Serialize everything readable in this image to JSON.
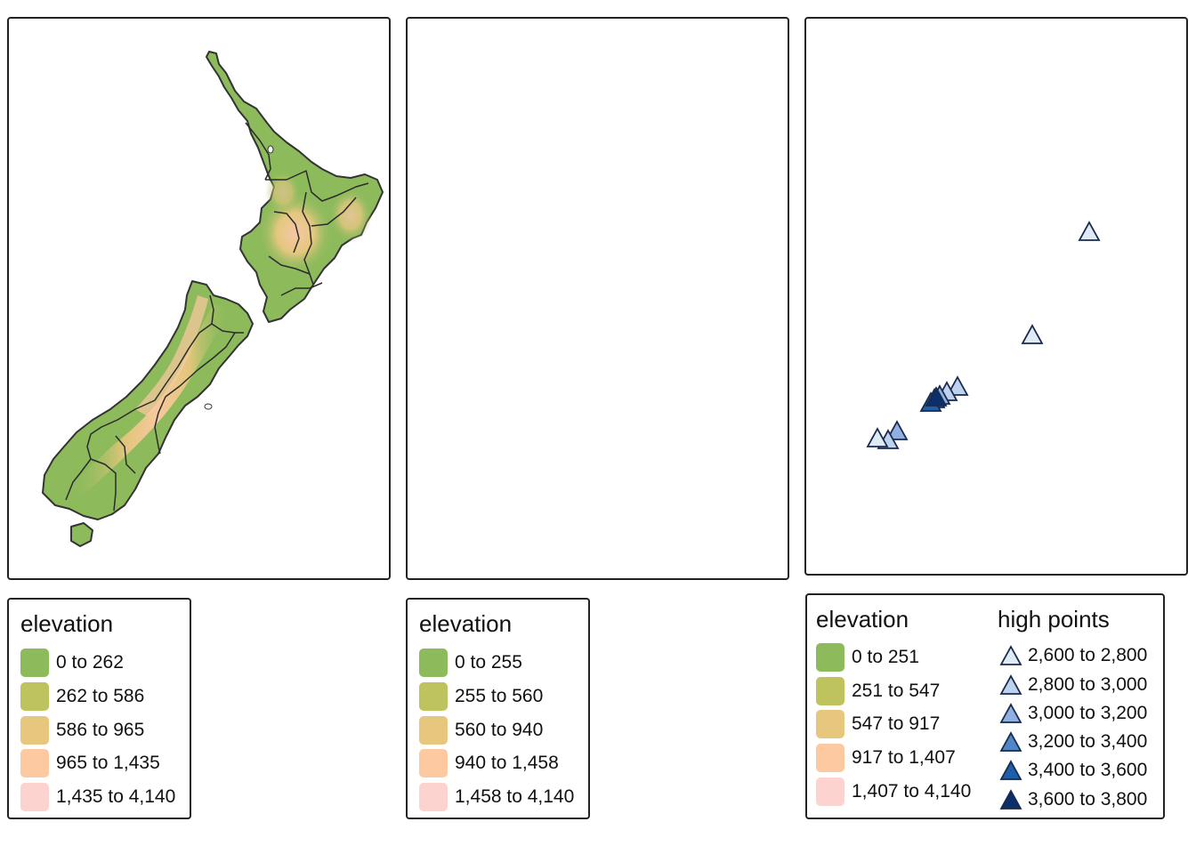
{
  "maps": [
    {
      "buffer": false,
      "high_points": false,
      "legend": {
        "title": "elevation",
        "classes": [
          {
            "label": "0 to 262",
            "color": "#8dbb5c"
          },
          {
            "label": "262 to 586",
            "color": "#bfc35e"
          },
          {
            "label": "586 to 965",
            "color": "#e6c77d"
          },
          {
            "label": "965 to 1,435",
            "color": "#fcc9a1"
          },
          {
            "label": "1,435 to 4,140",
            "color": "#fdd3d0"
          }
        ]
      }
    },
    {
      "buffer": true,
      "high_points": false,
      "legend": {
        "title": "elevation",
        "classes": [
          {
            "label": "0 to 255",
            "color": "#8dbb5c"
          },
          {
            "label": "255 to 560",
            "color": "#bfc35e"
          },
          {
            "label": "560 to 940",
            "color": "#e6c77d"
          },
          {
            "label": "940 to 1,458",
            "color": "#fcc9a1"
          },
          {
            "label": "1,458 to 4,140",
            "color": "#fdd3d0"
          }
        ]
      }
    },
    {
      "buffer": true,
      "high_points": true,
      "legend": {
        "title": "elevation",
        "classes": [
          {
            "label": "0 to 251",
            "color": "#8dbb5c"
          },
          {
            "label": "251 to 547",
            "color": "#bfc35e"
          },
          {
            "label": "547 to 917",
            "color": "#e6c77d"
          },
          {
            "label": "917 to 1,407",
            "color": "#fcc9a1"
          },
          {
            "label": "1,407 to 4,140",
            "color": "#fdd3d0"
          }
        ]
      },
      "high_points_legend": {
        "title": "high points",
        "classes": [
          {
            "label": "2,600 to 2,800",
            "color": "#deebf7"
          },
          {
            "label": "2,800 to 3,000",
            "color": "#bcd2ee"
          },
          {
            "label": "3,000 to 3,200",
            "color": "#8fb0e0"
          },
          {
            "label": "3,200 to 3,400",
            "color": "#4f86c6"
          },
          {
            "label": "3,400 to 3,600",
            "color": "#1f5ea8"
          },
          {
            "label": "3,600 to 3,800",
            "color": "#0b2f6b"
          }
        ]
      }
    }
  ]
}
